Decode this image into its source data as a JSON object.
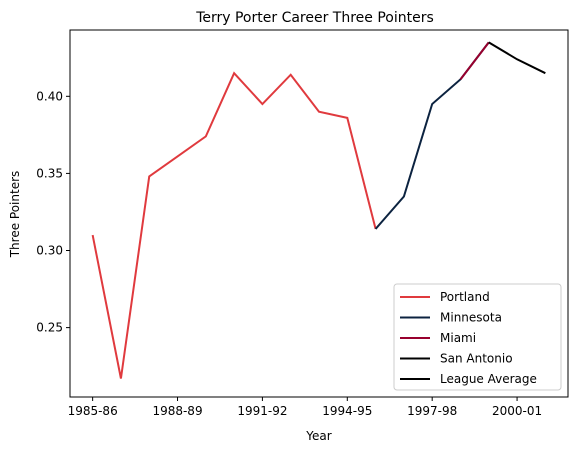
{
  "chart_data": {
    "type": "line",
    "title": "Terry Porter Career Three Pointers",
    "xlabel": "Year",
    "ylabel": "Three Pointers",
    "x_tick_labels": [
      "1985-86",
      "1988-89",
      "1991-92",
      "1994-95",
      "1997-98",
      "2000-01"
    ],
    "x_tick_positions": [
      0,
      3,
      6,
      9,
      12,
      15
    ],
    "xlim": [
      -0.8,
      16.8
    ],
    "ylim": [
      0.205,
      0.443
    ],
    "y_ticks": [
      0.25,
      0.3,
      0.35,
      0.4
    ],
    "y_tick_labels": [
      "0.25",
      "0.30",
      "0.35",
      "0.40"
    ],
    "grid": false,
    "legend_position": "bottom-right",
    "series": [
      {
        "name": "Portland",
        "color": "#e03a3e",
        "points": [
          [
            0,
            0.31
          ],
          [
            1,
            0.217
          ],
          [
            2,
            0.348
          ],
          [
            3,
            0.361
          ],
          [
            4,
            0.374
          ],
          [
            5,
            0.415
          ],
          [
            6,
            0.395
          ],
          [
            7,
            0.414
          ],
          [
            8,
            0.39
          ],
          [
            9,
            0.386
          ],
          [
            10,
            0.314
          ]
        ]
      },
      {
        "name": "Minnesota",
        "color": "#0c2340",
        "points": [
          [
            10,
            0.314
          ],
          [
            11,
            0.335
          ],
          [
            12,
            0.395
          ],
          [
            13,
            0.411
          ],
          [
            14,
            0.435
          ]
        ]
      },
      {
        "name": "Miami",
        "color": "#98002e",
        "points": [
          [
            13,
            0.411
          ],
          [
            14,
            0.435
          ]
        ]
      },
      {
        "name": "San Antonio",
        "color": "#000000",
        "points": [
          [
            14,
            0.435
          ],
          [
            15,
            0.424
          ],
          [
            16,
            0.415
          ]
        ]
      },
      {
        "name": "League Average",
        "color": "#000000",
        "points": []
      }
    ]
  }
}
